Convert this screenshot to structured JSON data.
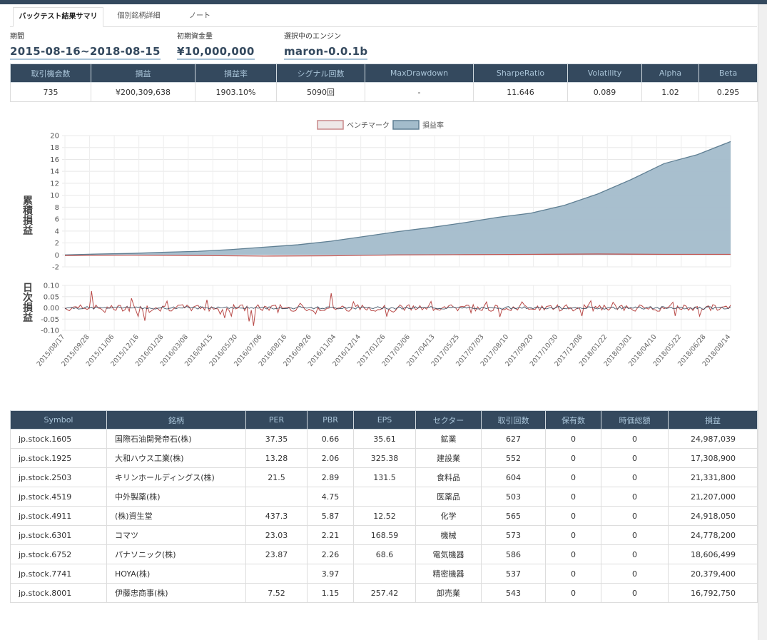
{
  "tabs": [
    "バックテスト結果サマリ",
    "個別銘柄詳細",
    "ノート"
  ],
  "meta": {
    "period_label": "期間",
    "period_value": "2015-08-16~2018-08-15",
    "capital_label": "初期資金量",
    "capital_value": "¥10,000,000",
    "engine_label": "選択中のエンジン",
    "engine_value": "maron-0.0.1b"
  },
  "summary": {
    "headers": [
      "取引機会数",
      "損益",
      "損益率",
      "シグナル回数",
      "MaxDrawdown",
      "SharpeRatio",
      "Volatility",
      "Alpha",
      "Beta"
    ],
    "values": [
      "735",
      "¥200,309,638",
      "1903.10%",
      "5090回",
      "-",
      "11.646",
      "0.089",
      "1.02",
      "0.295"
    ]
  },
  "colors": {
    "header_bg": "#34495e",
    "header_text": "#a9c4d8",
    "area_fill": "#a3bccb",
    "area_line": "#5f7f93",
    "bench": "#c0504d"
  },
  "chart_data": {
    "type": "area",
    "legend": [
      "ベンチマーク",
      "損益率"
    ],
    "legend_position": "top-center",
    "top_panel": {
      "ylabel": "累積損益",
      "ylim": [
        -2,
        20
      ],
      "yticks": [
        -2,
        0,
        2,
        4,
        6,
        8,
        10,
        12,
        14,
        16,
        18,
        20
      ],
      "series": [
        {
          "name": "損益率",
          "points": [
            [
              0,
              0
            ],
            [
              0.05,
              0.15
            ],
            [
              0.1,
              0.25
            ],
            [
              0.15,
              0.45
            ],
            [
              0.2,
              0.6
            ],
            [
              0.25,
              0.9
            ],
            [
              0.3,
              1.3
            ],
            [
              0.35,
              1.7
            ],
            [
              0.4,
              2.3
            ],
            [
              0.45,
              3.1
            ],
            [
              0.5,
              3.9
            ],
            [
              0.55,
              4.6
            ],
            [
              0.6,
              5.4
            ],
            [
              0.65,
              6.3
            ],
            [
              0.7,
              7.0
            ],
            [
              0.75,
              8.3
            ],
            [
              0.8,
              10.2
            ],
            [
              0.85,
              12.6
            ],
            [
              0.9,
              15.3
            ],
            [
              0.95,
              16.8
            ],
            [
              1.0,
              19.0
            ]
          ]
        },
        {
          "name": "ベンチマーク",
          "points": [
            [
              0,
              -0.1
            ],
            [
              0.1,
              -0.05
            ],
            [
              0.2,
              -0.1
            ],
            [
              0.3,
              -0.2
            ],
            [
              0.4,
              -0.15
            ],
            [
              0.5,
              0.0
            ],
            [
              0.6,
              0.05
            ],
            [
              0.7,
              0.1
            ],
            [
              0.8,
              0.15
            ],
            [
              0.9,
              0.1
            ],
            [
              1.0,
              0.1
            ]
          ]
        }
      ]
    },
    "bottom_panel": {
      "ylabel": "日次損益",
      "ylim": [
        -0.1,
        0.1
      ],
      "yticks": [
        "0.10",
        "0.05",
        "0.00",
        "-0.05",
        "-0.10"
      ],
      "range": "approx -0.08 to 0.075"
    },
    "x_tick_labels": [
      "2015/08/17",
      "2015/09/28",
      "2015/11/06",
      "2015/12/16",
      "2016/01/28",
      "2016/03/08",
      "2016/04/15",
      "2016/05/30",
      "2016/07/06",
      "2016/08/16",
      "2016/09/26",
      "2016/11/04",
      "2016/12/14",
      "2017/01/26",
      "2017/03/06",
      "2017/04/13",
      "2017/05/25",
      "2017/07/03",
      "2017/08/10",
      "2017/09/20",
      "2017/10/30",
      "2017/12/08",
      "2018/01/22",
      "2018/03/01",
      "2018/04/10",
      "2018/05/22",
      "2018/06/28",
      "2018/08/14"
    ]
  },
  "stocks": {
    "headers": [
      "Symbol",
      "銘柄",
      "PER",
      "PBR",
      "EPS",
      "セクター",
      "取引回数",
      "保有数",
      "時価総額",
      "損益"
    ],
    "rows": [
      [
        "jp.stock.1605",
        "国際石油開発帝石(株)",
        "37.35",
        "0.66",
        "35.61",
        "鉱業",
        "627",
        "0",
        "0",
        "24,987,039"
      ],
      [
        "jp.stock.1925",
        "大和ハウス工業(株)",
        "13.28",
        "2.06",
        "325.38",
        "建設業",
        "552",
        "0",
        "0",
        "17,308,900"
      ],
      [
        "jp.stock.2503",
        "キリンホールディングス(株)",
        "21.5",
        "2.89",
        "131.5",
        "食料品",
        "604",
        "0",
        "0",
        "21,331,800"
      ],
      [
        "jp.stock.4519",
        "中外製薬(株)",
        "",
        "4.75",
        "",
        "医薬品",
        "503",
        "0",
        "0",
        "21,207,000"
      ],
      [
        "jp.stock.4911",
        "(株)資生堂",
        "437.3",
        "5.87",
        "12.52",
        "化学",
        "565",
        "0",
        "0",
        "24,918,050"
      ],
      [
        "jp.stock.6301",
        "コマツ",
        "23.03",
        "2.21",
        "168.59",
        "機械",
        "573",
        "0",
        "0",
        "24,778,200"
      ],
      [
        "jp.stock.6752",
        "パナソニック(株)",
        "23.87",
        "2.26",
        "68.6",
        "電気機器",
        "586",
        "0",
        "0",
        "18,606,499"
      ],
      [
        "jp.stock.7741",
        "HOYA(株)",
        "",
        "3.97",
        "",
        "精密機器",
        "537",
        "0",
        "0",
        "20,379,400"
      ],
      [
        "jp.stock.8001",
        "伊藤忠商事(株)",
        "7.52",
        "1.15",
        "257.42",
        "卸売業",
        "543",
        "0",
        "0",
        "16,792,750"
      ]
    ]
  }
}
